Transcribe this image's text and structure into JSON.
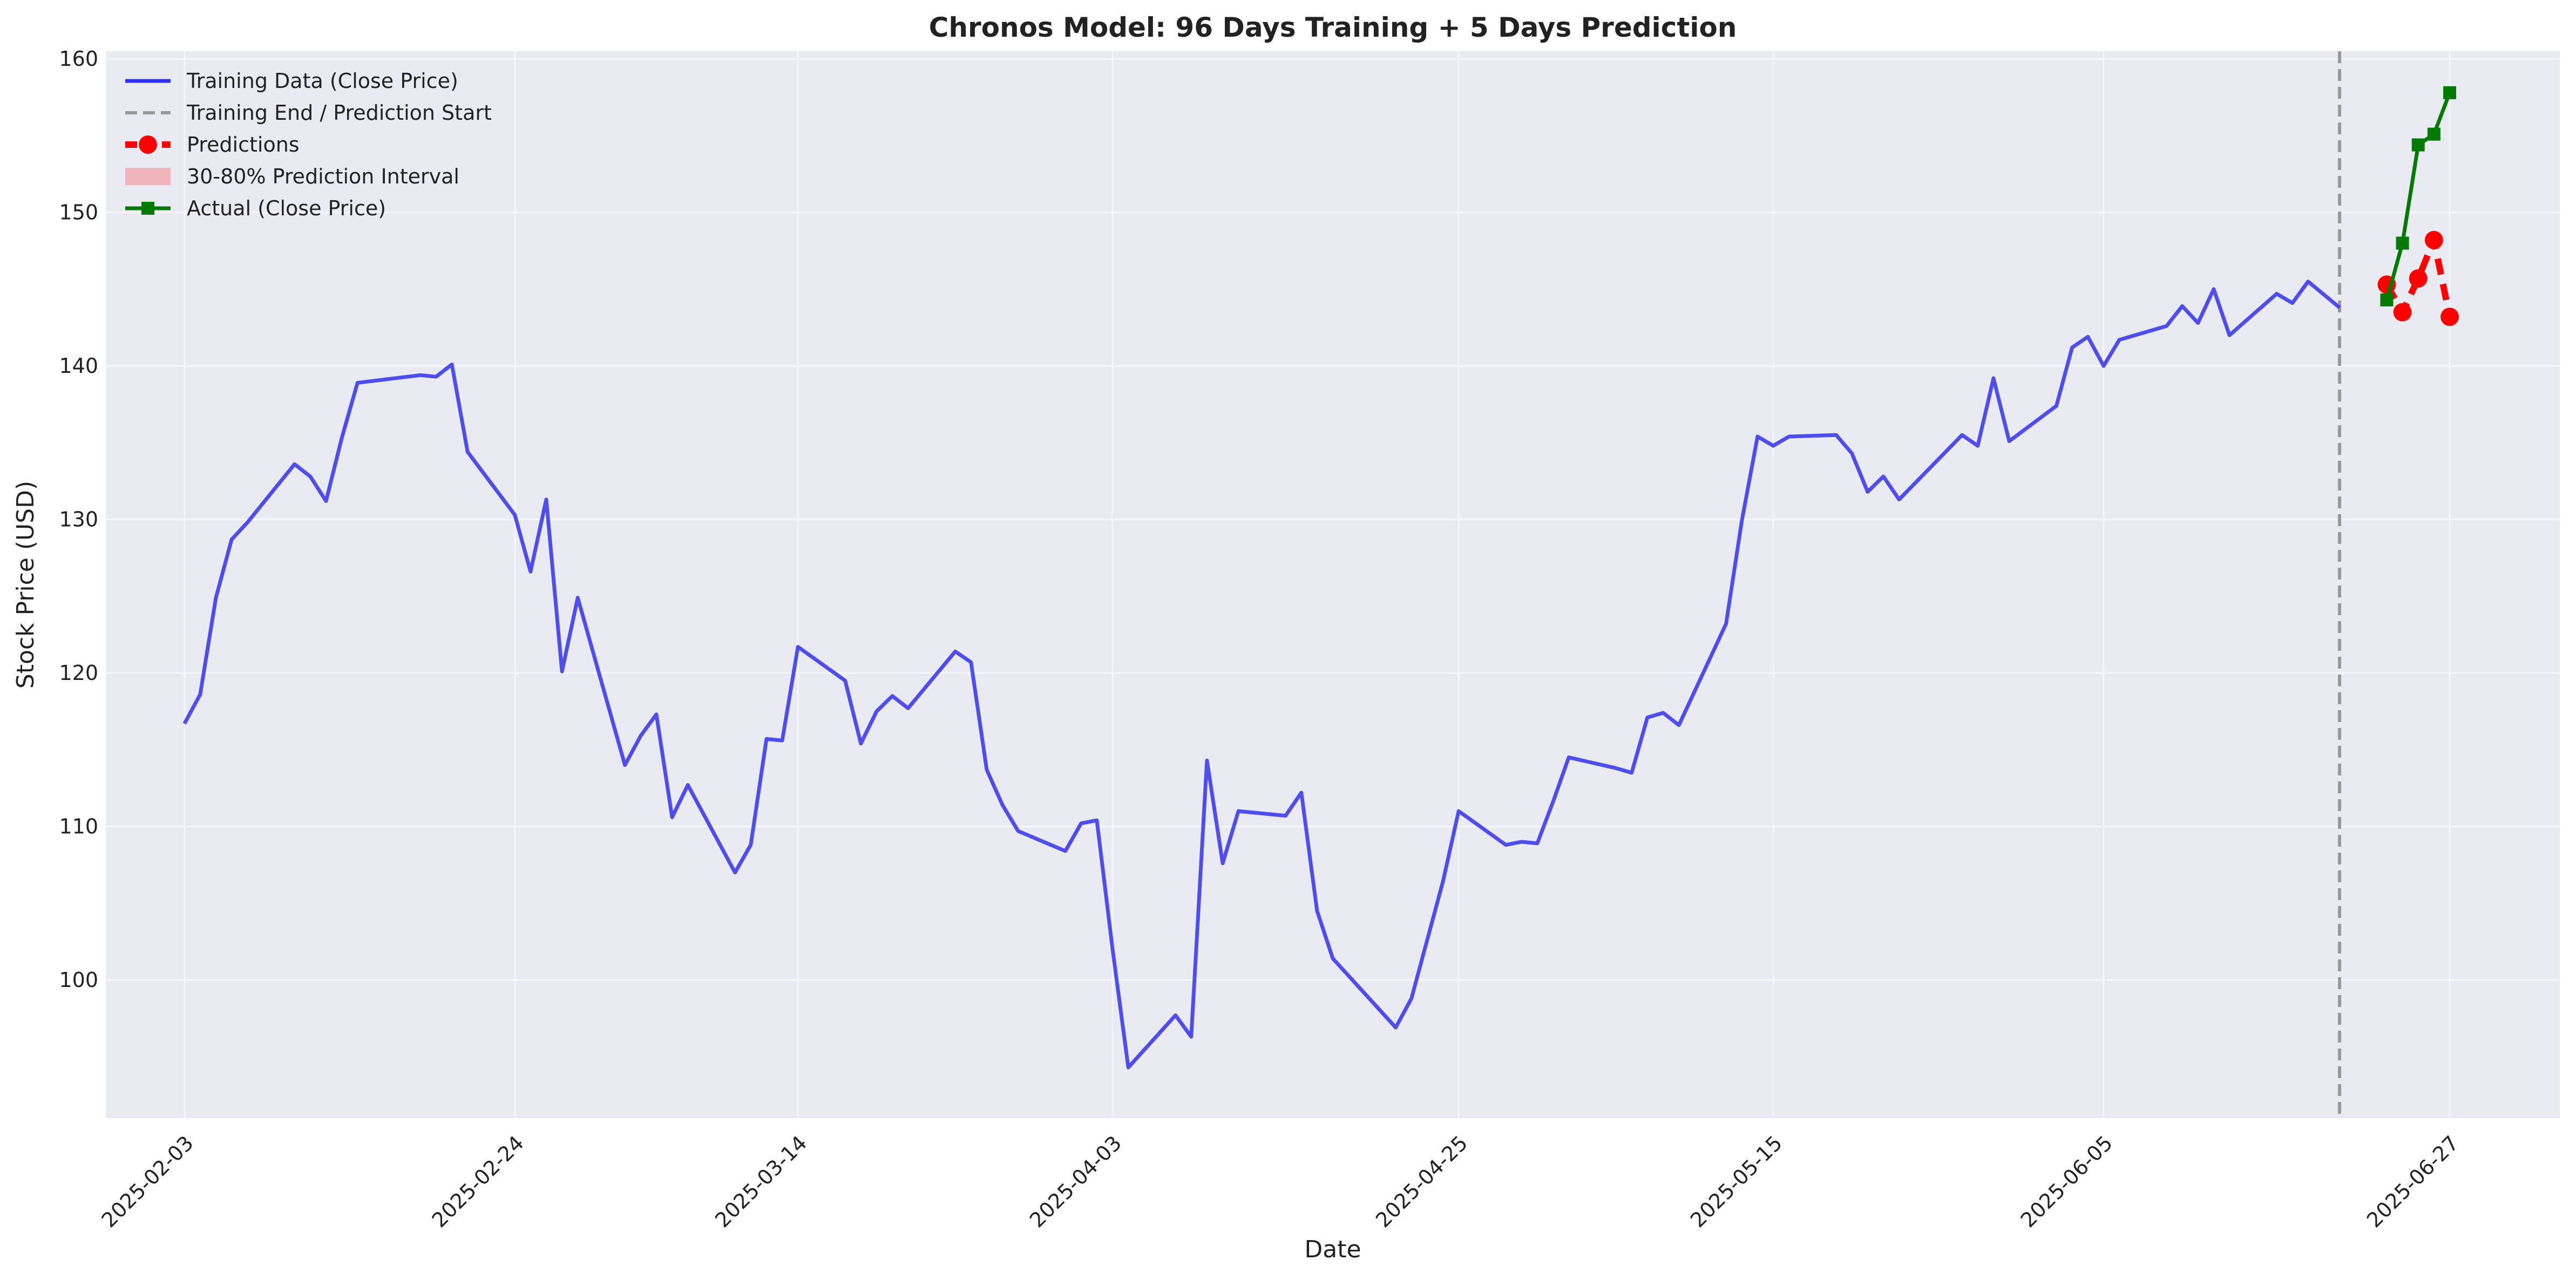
{
  "chart_data": {
    "type": "line",
    "title": "Chronos Model: 96 Days Training + 5 Days Prediction",
    "xlabel": "Date",
    "ylabel": "Stock Price (USD)",
    "x_axis_type": "date",
    "xlim": [
      "2025-01-29",
      "2025-07-04"
    ],
    "ylim": [
      91,
      160.5
    ],
    "y_ticks": [
      100,
      110,
      120,
      130,
      140,
      150,
      160
    ],
    "x_ticks": [
      "2025-02-03",
      "2025-02-24",
      "2025-03-14",
      "2025-04-03",
      "2025-04-25",
      "2025-05-15",
      "2025-06-05",
      "2025-06-27"
    ],
    "grid": true,
    "legend_position": "top-left",
    "vline": {
      "x": "2025-06-20",
      "name": "Training End / Prediction Start",
      "color": "#999999"
    },
    "series": [
      {
        "name": "Training Data (Close Price)",
        "color": "#3333ee",
        "style": "solid",
        "x": [
          "2025-02-03",
          "2025-02-04",
          "2025-02-05",
          "2025-02-06",
          "2025-02-07",
          "2025-02-10",
          "2025-02-11",
          "2025-02-12",
          "2025-02-13",
          "2025-02-14",
          "2025-02-18",
          "2025-02-19",
          "2025-02-20",
          "2025-02-21",
          "2025-02-24",
          "2025-02-25",
          "2025-02-26",
          "2025-02-27",
          "2025-02-28",
          "2025-03-03",
          "2025-03-04",
          "2025-03-05",
          "2025-03-06",
          "2025-03-07",
          "2025-03-10",
          "2025-03-11",
          "2025-03-12",
          "2025-03-13",
          "2025-03-14",
          "2025-03-17",
          "2025-03-18",
          "2025-03-19",
          "2025-03-20",
          "2025-03-21",
          "2025-03-24",
          "2025-03-25",
          "2025-03-26",
          "2025-03-27",
          "2025-03-28",
          "2025-03-31",
          "2025-04-01",
          "2025-04-02",
          "2025-04-03",
          "2025-04-04",
          "2025-04-07",
          "2025-04-08",
          "2025-04-09",
          "2025-04-10",
          "2025-04-11",
          "2025-04-14",
          "2025-04-15",
          "2025-04-16",
          "2025-04-17",
          "2025-04-21",
          "2025-04-22",
          "2025-04-23",
          "2025-04-24",
          "2025-04-25",
          "2025-04-28",
          "2025-04-29",
          "2025-04-30",
          "2025-05-01",
          "2025-05-02",
          "2025-05-05",
          "2025-05-06",
          "2025-05-07",
          "2025-05-08",
          "2025-05-09",
          "2025-05-12",
          "2025-05-13",
          "2025-05-14",
          "2025-05-15",
          "2025-05-16",
          "2025-05-19",
          "2025-05-20",
          "2025-05-21",
          "2025-05-22",
          "2025-05-23",
          "2025-05-27",
          "2025-05-28",
          "2025-05-29",
          "2025-05-30",
          "2025-06-02",
          "2025-06-03",
          "2025-06-04",
          "2025-06-05",
          "2025-06-06",
          "2025-06-09",
          "2025-06-10",
          "2025-06-11",
          "2025-06-12",
          "2025-06-13",
          "2025-06-16",
          "2025-06-17",
          "2025-06-18",
          "2025-06-20"
        ],
        "y": [
          116.7,
          118.6,
          124.9,
          128.7,
          129.8,
          133.6,
          132.8,
          131.2,
          135.3,
          138.9,
          139.4,
          139.3,
          140.1,
          134.4,
          130.3,
          126.6,
          131.3,
          120.1,
          124.9,
          114.0,
          115.9,
          117.3,
          110.6,
          112.7,
          107.0,
          108.8,
          115.7,
          115.6,
          121.7,
          119.5,
          115.4,
          117.5,
          118.5,
          117.7,
          121.4,
          120.7,
          113.7,
          111.4,
          109.7,
          108.4,
          110.2,
          110.4,
          102.0,
          94.3,
          97.7,
          96.3,
          114.3,
          107.6,
          111.0,
          110.7,
          112.2,
          104.5,
          101.4,
          96.9,
          98.8,
          102.6,
          106.4,
          111.0,
          108.8,
          109.0,
          108.9,
          111.6,
          114.5,
          113.8,
          113.5,
          117.1,
          117.4,
          116.6,
          123.2,
          129.9,
          135.4,
          134.8,
          135.4,
          135.5,
          134.3,
          131.8,
          132.8,
          131.3,
          135.5,
          134.8,
          139.2,
          135.1,
          137.4,
          141.2,
          141.9,
          140.0,
          141.7,
          142.6,
          143.9,
          142.8,
          145.0,
          142.0,
          144.7,
          144.1,
          145.5,
          143.8
        ]
      },
      {
        "name": "Predictions",
        "color": "#ff0000",
        "style": "dashed",
        "marker": "circle",
        "x": [
          "2025-06-23",
          "2025-06-24",
          "2025-06-25",
          "2025-06-26",
          "2025-06-27"
        ],
        "y": [
          145.3,
          143.5,
          145.7,
          148.2,
          143.2
        ]
      },
      {
        "name": "30-80% Prediction Interval",
        "color": "#f0b4bc",
        "style": "band",
        "x": [],
        "lower": [],
        "upper": []
      },
      {
        "name": "Actual (Close Price)",
        "color": "#007a00",
        "style": "solid",
        "marker": "square",
        "x": [
          "2025-06-23",
          "2025-06-24",
          "2025-06-25",
          "2025-06-26",
          "2025-06-27"
        ],
        "y": [
          144.3,
          148.0,
          154.4,
          155.1,
          157.8
        ]
      }
    ]
  }
}
